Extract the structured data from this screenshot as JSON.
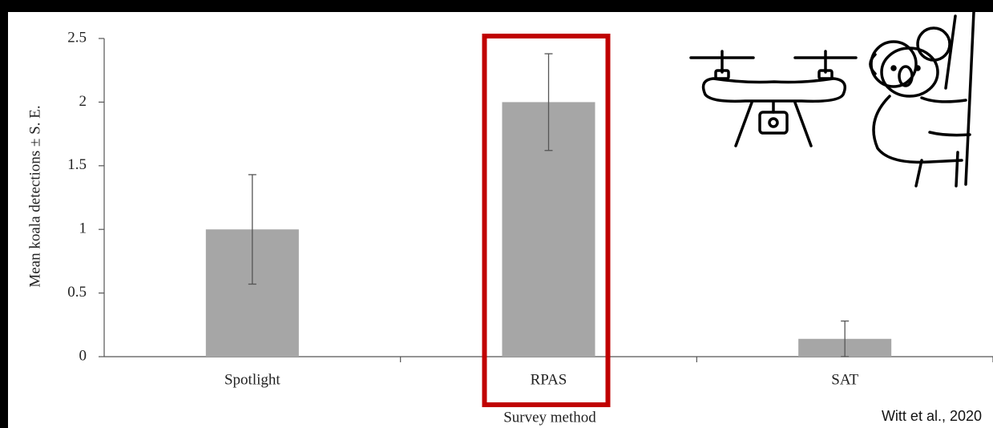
{
  "chart_data": {
    "type": "bar",
    "categories": [
      "Spotlight",
      "RPAS",
      "SAT"
    ],
    "values": [
      1,
      2,
      0.14
    ],
    "errors": [
      0.43,
      0.38,
      0.14
    ],
    "color": "#a6a6a6",
    "ylim": [
      0,
      2.5
    ],
    "yticks": [
      0,
      0.5,
      1,
      1.5,
      2,
      2.5
    ],
    "xlabel": "Survey method",
    "ylabel": "Mean koala detections ± S. E.",
    "highlight_color": "#c00000",
    "annotation": "Witt et al., 2020"
  }
}
